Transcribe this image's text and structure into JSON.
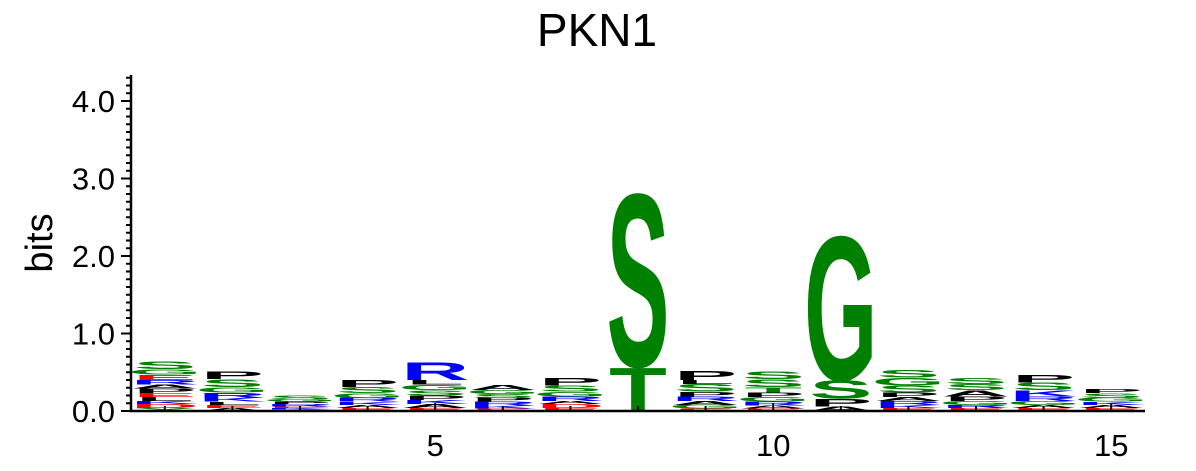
{
  "chart_data": {
    "type": "sequence-logo",
    "title": "PKN1",
    "ylabel": "bits",
    "xlabel": "",
    "ylim": [
      0,
      4.3
    ],
    "yticks": [
      0.0,
      1.0,
      2.0,
      3.0,
      4.0
    ],
    "ytick_labels": [
      "0.0",
      "1.0",
      "2.0",
      "3.0",
      "4.0"
    ],
    "xlim": [
      0.5,
      15.5
    ],
    "xticks": [
      5,
      10,
      15
    ],
    "xtick_labels": [
      "5",
      "10",
      "15"
    ],
    "colors": {
      "S": "#008000",
      "T": "#008000",
      "G": "#008000",
      "C": "#008000",
      "Y": "#008000",
      "N": "#800080",
      "Q": "#800080",
      "R": "#0000ff",
      "K": "#0000ff",
      "H": "#0000ff",
      "D": "#ff0000",
      "E": "#ff0000",
      "P": "#000000",
      "A": "#000000",
      "L": "#000000",
      "I": "#000000",
      "V": "#000000",
      "M": "#000000",
      "F": "#000000",
      "W": "#000000"
    },
    "positions": [
      {
        "pos": 1,
        "letters": [
          [
            "Y",
            0.04
          ],
          [
            "D",
            0.05
          ],
          [
            "K",
            0.04
          ],
          [
            "L",
            0.05
          ],
          [
            "E",
            0.05
          ],
          [
            "P",
            0.06
          ],
          [
            "A",
            0.05
          ],
          [
            "R",
            0.06
          ],
          [
            "E",
            0.07
          ],
          [
            "G",
            0.07
          ],
          [
            "S",
            0.1
          ]
        ]
      },
      {
        "pos": 2,
        "letters": [
          [
            "A",
            0.04
          ],
          [
            "E",
            0.04
          ],
          [
            "L",
            0.04
          ],
          [
            "K",
            0.05
          ],
          [
            "R",
            0.07
          ],
          [
            "G",
            0.07
          ],
          [
            "S",
            0.1
          ],
          [
            "P",
            0.1
          ]
        ]
      },
      {
        "pos": 3,
        "letters": [
          [
            "A",
            0.02
          ],
          [
            "K",
            0.02
          ],
          [
            "E",
            0.02
          ],
          [
            "R",
            0.03
          ],
          [
            "P",
            0.03
          ],
          [
            "G",
            0.03
          ],
          [
            "S",
            0.05
          ]
        ]
      },
      {
        "pos": 4,
        "letters": [
          [
            "E",
            0.04
          ],
          [
            "A",
            0.04
          ],
          [
            "K",
            0.04
          ],
          [
            "R",
            0.05
          ],
          [
            "G",
            0.06
          ],
          [
            "S",
            0.08
          ],
          [
            "P",
            0.09
          ]
        ]
      },
      {
        "pos": 5,
        "letters": [
          [
            "E",
            0.04
          ],
          [
            "A",
            0.05
          ],
          [
            "K",
            0.05
          ],
          [
            "P",
            0.06
          ],
          [
            "S",
            0.07
          ],
          [
            "G",
            0.07
          ],
          [
            "L",
            0.06
          ],
          [
            "R",
            0.23
          ]
        ]
      },
      {
        "pos": 6,
        "letters": [
          [
            "E",
            0.03
          ],
          [
            "K",
            0.04
          ],
          [
            "R",
            0.05
          ],
          [
            "P",
            0.05
          ],
          [
            "S",
            0.05
          ],
          [
            "G",
            0.05
          ],
          [
            "A",
            0.07
          ]
        ]
      },
      {
        "pos": 7,
        "letters": [
          [
            "E",
            0.04
          ],
          [
            "D",
            0.05
          ],
          [
            "A",
            0.04
          ],
          [
            "R",
            0.06
          ],
          [
            "G",
            0.06
          ],
          [
            "S",
            0.08
          ],
          [
            "P",
            0.1
          ]
        ]
      },
      {
        "pos": 8,
        "letters": [
          [
            "T",
            0.58
          ],
          [
            "S",
            2.3
          ]
        ]
      },
      {
        "pos": 9,
        "letters": [
          [
            "E",
            0.03
          ],
          [
            "G",
            0.05
          ],
          [
            "A",
            0.05
          ],
          [
            "R",
            0.06
          ],
          [
            "P",
            0.06
          ],
          [
            "S",
            0.1
          ],
          [
            "L",
            0.05
          ],
          [
            "P",
            0.12
          ]
        ]
      },
      {
        "pos": 10,
        "letters": [
          [
            "E",
            0.03
          ],
          [
            "A",
            0.04
          ],
          [
            "R",
            0.05
          ],
          [
            "G",
            0.06
          ],
          [
            "P",
            0.06
          ],
          [
            "T",
            0.07
          ],
          [
            "S",
            0.1
          ],
          [
            "S",
            0.1
          ]
        ]
      },
      {
        "pos": 11,
        "letters": [
          [
            "A",
            0.06
          ],
          [
            "P",
            0.1
          ],
          [
            "S",
            0.24
          ],
          [
            "G",
            1.92
          ]
        ]
      },
      {
        "pos": 12,
        "letters": [
          [
            "E",
            0.04
          ],
          [
            "K",
            0.04
          ],
          [
            "R",
            0.05
          ],
          [
            "A",
            0.05
          ],
          [
            "P",
            0.06
          ],
          [
            "S",
            0.09
          ],
          [
            "G",
            0.1
          ],
          [
            "S",
            0.1
          ]
        ]
      },
      {
        "pos": 13,
        "letters": [
          [
            "E",
            0.04
          ],
          [
            "R",
            0.04
          ],
          [
            "G",
            0.05
          ],
          [
            "P",
            0.06
          ],
          [
            "A",
            0.08
          ],
          [
            "S",
            0.08
          ],
          [
            "S",
            0.08
          ]
        ]
      },
      {
        "pos": 14,
        "letters": [
          [
            "E",
            0.04
          ],
          [
            "A",
            0.04
          ],
          [
            "G",
            0.05
          ],
          [
            "R",
            0.06
          ],
          [
            "K",
            0.08
          ],
          [
            "S",
            0.1
          ],
          [
            "P",
            0.1
          ]
        ]
      },
      {
        "pos": 15,
        "letters": [
          [
            "E",
            0.04
          ],
          [
            "A",
            0.04
          ],
          [
            "K",
            0.04
          ],
          [
            "G",
            0.05
          ],
          [
            "S",
            0.06
          ],
          [
            "P",
            0.05
          ]
        ]
      }
    ]
  }
}
